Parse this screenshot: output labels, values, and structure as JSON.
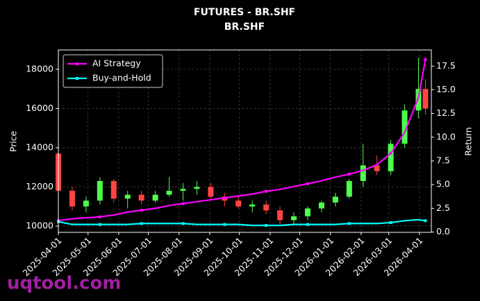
{
  "chart_data": {
    "type": "candlestick",
    "title": "FUTURES - BR.SHF",
    "subtitle": "BR.SHF",
    "y_label": "Price",
    "y2_label": "Return",
    "x": [
      "2025-04-01",
      "2025-04-15",
      "2025-04-29",
      "2025-05-13",
      "2025-05-27",
      "2025-06-10",
      "2025-06-24",
      "2025-07-08",
      "2025-07-22",
      "2025-08-05",
      "2025-08-19",
      "2025-09-02",
      "2025-09-16",
      "2025-09-30",
      "2025-10-14",
      "2025-10-28",
      "2025-11-11",
      "2025-11-25",
      "2025-12-09",
      "2025-12-23",
      "2026-01-06",
      "2026-01-20",
      "2026-02-03",
      "2026-02-17",
      "2026-03-03",
      "2026-03-17",
      "2026-03-31",
      "2026-04-07"
    ],
    "open": [
      13700,
      11800,
      11000,
      11300,
      12300,
      11400,
      11600,
      11300,
      11600,
      11800,
      11900,
      12000,
      11500,
      11300,
      11000,
      11100,
      10800,
      10300,
      10500,
      10900,
      11200,
      11500,
      12300,
      13100,
      12800,
      14200,
      15900,
      17000
    ],
    "high": [
      13900,
      12000,
      11500,
      12500,
      12400,
      11800,
      11800,
      11800,
      12500,
      12200,
      12300,
      12200,
      11700,
      11500,
      11300,
      11300,
      11000,
      10700,
      11000,
      11300,
      11700,
      12400,
      14200,
      13600,
      14400,
      16200,
      18600,
      17500
    ],
    "low": [
      11500,
      10800,
      10700,
      11100,
      11200,
      10900,
      11100,
      11200,
      11500,
      11300,
      11600,
      11400,
      11000,
      10900,
      10700,
      10600,
      10100,
      10100,
      10300,
      10700,
      11000,
      11400,
      12000,
      12600,
      12600,
      14000,
      15500,
      15700
    ],
    "close": [
      11800,
      11000,
      11300,
      12300,
      11400,
      11600,
      11300,
      11600,
      11800,
      11900,
      12000,
      11500,
      11300,
      11000,
      11100,
      10800,
      10300,
      10500,
      10900,
      11200,
      11500,
      12300,
      13100,
      12800,
      14200,
      15900,
      17000,
      16000
    ],
    "up_color": "#4dff4d",
    "down_color": "#ff4444",
    "series": [
      {
        "name": "AI Strategy",
        "color": "#ff00ff",
        "axis": "y2",
        "values": [
          1.2,
          1.4,
          1.5,
          1.6,
          1.8,
          2.1,
          2.3,
          2.5,
          2.8,
          3.0,
          3.2,
          3.4,
          3.6,
          3.8,
          4.0,
          4.3,
          4.5,
          4.8,
          5.1,
          5.4,
          5.8,
          6.1,
          6.5,
          7.1,
          8.3,
          10.5,
          14.2,
          18.2
        ]
      },
      {
        "name": "Buy-and-Hold",
        "color": "#00ffff",
        "axis": "y2",
        "values": [
          1.1,
          0.8,
          0.8,
          0.8,
          0.8,
          0.8,
          0.9,
          0.9,
          0.9,
          0.9,
          0.8,
          0.8,
          0.8,
          0.8,
          0.7,
          0.7,
          0.7,
          0.8,
          0.8,
          0.8,
          0.8,
          0.9,
          0.9,
          0.9,
          1.0,
          1.2,
          1.3,
          1.2
        ]
      }
    ],
    "xlim": [
      "2025-04-01",
      "2026-04-13"
    ],
    "xticks": [
      "2025-04-01",
      "2025-05-01",
      "2025-06-01",
      "2025-07-01",
      "2025-08-01",
      "2025-09-01",
      "2025-10-01",
      "2025-11-01",
      "2025-12-01",
      "2026-01-01",
      "2026-02-01",
      "2026-03-01",
      "2026-04-01"
    ],
    "ylim": [
      9680,
      18990
    ],
    "yticks": [
      10000,
      12000,
      14000,
      16000,
      18000
    ],
    "y2lim": [
      -0.03,
      19.2
    ],
    "y2ticks": [
      {
        "value": 0,
        "label": "0.0"
      },
      {
        "value": 2.5,
        "label": "2.5"
      },
      {
        "value": 5,
        "label": "5.0"
      },
      {
        "value": 7.5,
        "label": "7.5"
      },
      {
        "value": 10,
        "label": "10.0"
      },
      {
        "value": 12.5,
        "label": "12.5"
      },
      {
        "value": 15,
        "label": "15.0"
      },
      {
        "value": 17.5,
        "label": "17.5"
      }
    ],
    "grid": true,
    "legend": "upper left"
  },
  "watermark": "uqtool.com"
}
